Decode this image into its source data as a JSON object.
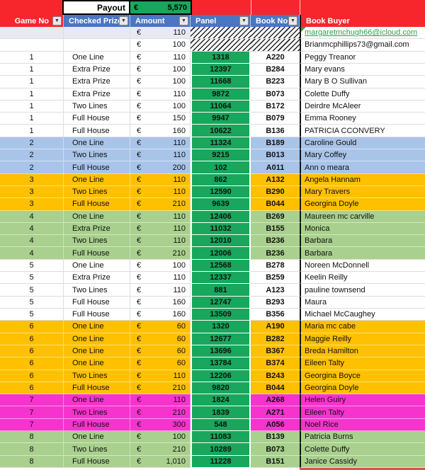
{
  "payout": {
    "label": "Payout",
    "currency": "€",
    "value": "5,570"
  },
  "ui": {
    "currency": "€",
    "filter_glyph": "▼"
  },
  "columns": [
    {
      "label": "Game No",
      "filter": true
    },
    {
      "label": "Checked Prize",
      "filter": true
    },
    {
      "label": "Amount",
      "filter": true
    },
    {
      "label": "Panel",
      "filter": true
    },
    {
      "label": "Book No.",
      "filter": true
    },
    {
      "label": "Book Buyer",
      "filter": false
    }
  ],
  "colors": {
    "red": "#F7262C",
    "headerblue": "#4A76C2",
    "white": "#FFFFFF",
    "band": "#E9E9F2",
    "lightblue": "#A9C4E9",
    "orange": "#FFC000",
    "lightgreen": "#A9D08E",
    "magenta": "#F733CE",
    "panelgreen": "#18A75C",
    "link": "#2E9E50",
    "divider": "#141414",
    "grid": "#DADDE4",
    "sliver": "#DC5248"
  },
  "game_colors": {
    "1": "white",
    "2": "lightblue",
    "3": "orange",
    "4": "lightgreen",
    "5": "white",
    "6": "orange",
    "7": "magenta",
    "8": "lightgreen"
  },
  "rows": [
    {
      "type": "email",
      "shade": "band",
      "amount": "110",
      "buyer": "margaretmchugh66@icloud.com",
      "link": true
    },
    {
      "type": "email",
      "shade": "white",
      "amount": "100",
      "buyer": "Brianmcphillips73@gmail.com",
      "link": false
    },
    {
      "type": "data",
      "game": "1",
      "prize": "One Line",
      "amount": "110",
      "panel": "1318",
      "book": "A220",
      "buyer": "Peggy Treanor"
    },
    {
      "type": "data",
      "game": "1",
      "prize": "Extra Prize",
      "amount": "100",
      "panel": "12397",
      "book": "B284",
      "buyer": "Mary evans"
    },
    {
      "type": "data",
      "game": "1",
      "prize": "Extra Prize",
      "amount": "100",
      "panel": "11668",
      "book": "B223",
      "buyer": "Mary B O Sullivan"
    },
    {
      "type": "data",
      "game": "1",
      "prize": "Extra Prize",
      "amount": "110",
      "panel": "9872",
      "book": "B073",
      "buyer": "Colette Duffy"
    },
    {
      "type": "data",
      "game": "1",
      "prize": "Two Lines",
      "amount": "100",
      "panel": "11064",
      "book": "B172",
      "buyer": "Deirdre McAleer"
    },
    {
      "type": "data",
      "game": "1",
      "prize": "Full House",
      "amount": "150",
      "panel": "9947",
      "book": "B079",
      "buyer": "Emma Rooney"
    },
    {
      "type": "data",
      "game": "1",
      "prize": "Full House",
      "amount": "160",
      "panel": "10622",
      "book": "B136",
      "buyer": "PATRICIA CCONVERY"
    },
    {
      "type": "data",
      "game": "2",
      "prize": "One Line",
      "amount": "110",
      "panel": "11324",
      "book": "B189",
      "buyer": "Caroline Gould"
    },
    {
      "type": "data",
      "game": "2",
      "prize": "Two Lines",
      "amount": "110",
      "panel": "9215",
      "book": "B013",
      "buyer": "Mary Coffey"
    },
    {
      "type": "data",
      "game": "2",
      "prize": "Full House",
      "amount": "200",
      "panel": "102",
      "book": "A011",
      "buyer": "Ann o meara"
    },
    {
      "type": "data",
      "game": "3",
      "prize": "One Line",
      "amount": "110",
      "panel": "862",
      "book": "A132",
      "buyer": "Angela Hannam"
    },
    {
      "type": "data",
      "game": "3",
      "prize": "Two Lines",
      "amount": "110",
      "panel": "12590",
      "book": "B290",
      "buyer": "Mary Travers"
    },
    {
      "type": "data",
      "game": "3",
      "prize": "Full House",
      "amount": "210",
      "panel": "9639",
      "book": "B044",
      "buyer": "Georgina Doyle"
    },
    {
      "type": "data",
      "game": "4",
      "prize": "One Line",
      "amount": "110",
      "panel": "12406",
      "book": "B269",
      "buyer": "Maureen mc carville"
    },
    {
      "type": "data",
      "game": "4",
      "prize": "Extra Prize",
      "amount": "110",
      "panel": "11032",
      "book": "B155",
      "buyer": "Monica"
    },
    {
      "type": "data",
      "game": "4",
      "prize": "Two Lines",
      "amount": "110",
      "panel": "12010",
      "book": "B236",
      "buyer": "Barbara"
    },
    {
      "type": "data",
      "game": "4",
      "prize": "Full House",
      "amount": "210",
      "panel": "12006",
      "book": "B236",
      "buyer": "Barbara"
    },
    {
      "type": "data",
      "game": "5",
      "prize": "One Line",
      "amount": "100",
      "panel": "12568",
      "book": "B278",
      "buyer": "Noreen McDonnell"
    },
    {
      "type": "data",
      "game": "5",
      "prize": "Extra Prize",
      "amount": "110",
      "panel": "12337",
      "book": "B259",
      "buyer": "Keelin Reilly"
    },
    {
      "type": "data",
      "game": "5",
      "prize": "Two Lines",
      "amount": "110",
      "panel": "881",
      "book": "A123",
      "buyer": "pauline townsend"
    },
    {
      "type": "data",
      "game": "5",
      "prize": "Full House",
      "amount": "160",
      "panel": "12747",
      "book": "B293",
      "buyer": "Maura"
    },
    {
      "type": "data",
      "game": "5",
      "prize": "Full House",
      "amount": "160",
      "panel": "13509",
      "book": "B356",
      "buyer": "Michael McCaughey"
    },
    {
      "type": "data",
      "game": "6",
      "prize": "One Line",
      "amount": "60",
      "panel": "1320",
      "book": "A190",
      "buyer": "Maria mc cabe"
    },
    {
      "type": "data",
      "game": "6",
      "prize": "One Line",
      "amount": "60",
      "panel": "12677",
      "book": "B282",
      "buyer": "Maggie Reilly"
    },
    {
      "type": "data",
      "game": "6",
      "prize": "One Line",
      "amount": "60",
      "panel": "13696",
      "book": "B367",
      "buyer": "Breda Hamilton"
    },
    {
      "type": "data",
      "game": "6",
      "prize": "One Line",
      "amount": "60",
      "panel": "13784",
      "book": "B374",
      "buyer": "Eileen Talty"
    },
    {
      "type": "data",
      "game": "6",
      "prize": "Two Lines",
      "amount": "110",
      "panel": "12206",
      "book": "B243",
      "buyer": "Georgina Boyce"
    },
    {
      "type": "data",
      "game": "6",
      "prize": "Full House",
      "amount": "210",
      "panel": "9820",
      "book": "B044",
      "buyer": "Georgina Doyle"
    },
    {
      "type": "data",
      "game": "7",
      "prize": "One Line",
      "amount": "110",
      "panel": "1824",
      "book": "A268",
      "buyer": "Helen Guiry"
    },
    {
      "type": "data",
      "game": "7",
      "prize": "Two Lines",
      "amount": "210",
      "panel": "1839",
      "book": "A271",
      "buyer": "Eileen Talty"
    },
    {
      "type": "data",
      "game": "7",
      "prize": "Full House",
      "amount": "300",
      "panel": "548",
      "book": "A056",
      "buyer": "Noel Rice"
    },
    {
      "type": "data",
      "game": "8",
      "prize": "One Line",
      "amount": "100",
      "panel": "11083",
      "book": "B139",
      "buyer": "Patricia Burns"
    },
    {
      "type": "data",
      "game": "8",
      "prize": "Two Lines",
      "amount": "210",
      "panel": "10289",
      "book": "B073",
      "buyer": "Colette Duffy"
    },
    {
      "type": "data",
      "game": "8",
      "prize": "Full House",
      "amount": "1,010",
      "panel": "11228",
      "book": "B151",
      "buyer": "Janice Cassidy"
    }
  ]
}
